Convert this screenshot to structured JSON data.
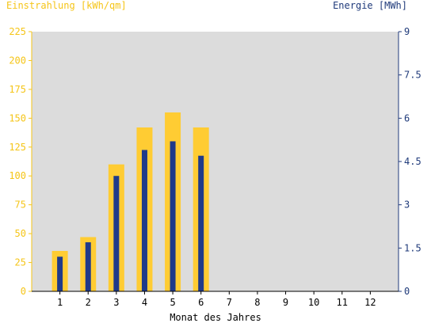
{
  "chart_data": {
    "type": "bar",
    "title": "",
    "xlabel": "Monat des Jahres",
    "ylabel_left": "Einstrahlung [kWh/qm]",
    "ylabel_right": "Energie [MWh]",
    "categories": [
      "1",
      "2",
      "3",
      "4",
      "5",
      "6",
      "7",
      "8",
      "9",
      "10",
      "11",
      "12"
    ],
    "ylim_left": [
      0,
      225
    ],
    "ylim_right": [
      0,
      9
    ],
    "yticks_left": [
      "0",
      "25",
      "50",
      "75",
      "100",
      "125",
      "150",
      "175",
      "200",
      "225"
    ],
    "yticks_right": [
      "0",
      "1.5",
      "3",
      "4.5",
      "6",
      "7.5",
      "9"
    ],
    "series": [
      {
        "name": "Einstrahlung [kWh/qm]",
        "axis": "left",
        "color": "#ffcc33",
        "values": [
          35,
          47,
          110,
          142,
          155,
          142,
          null,
          null,
          null,
          null,
          null,
          null
        ]
      },
      {
        "name": "Energie [MWh]",
        "axis": "right",
        "color": "#1f3a8a",
        "values": [
          1.2,
          1.7,
          4.0,
          4.9,
          5.2,
          4.7,
          null,
          null,
          null,
          null,
          null,
          null
        ]
      }
    ],
    "grid": false,
    "plot_background": "#dcdcdc"
  }
}
